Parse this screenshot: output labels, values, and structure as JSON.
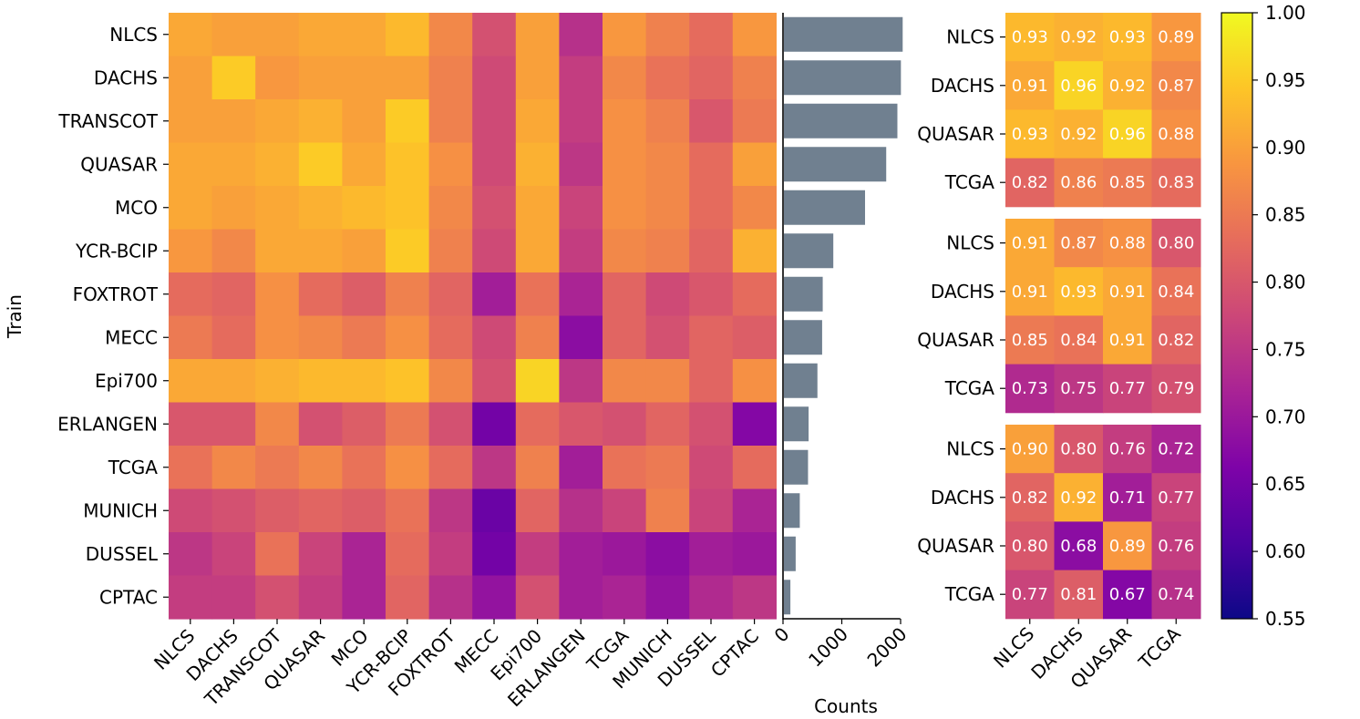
{
  "chart_data": [
    {
      "type": "heatmap",
      "name": "main-heatmap",
      "ylabel": "Train",
      "xlabel": "",
      "rows": [
        "NLCS",
        "DACHS",
        "TRANSCOT",
        "QUASAR",
        "MCO",
        "YCR-BCIP",
        "FOXTROT",
        "MECC",
        "Epi700",
        "ERLANGEN",
        "TCGA",
        "MUNICH",
        "DUSSEL",
        "CPTAC"
      ],
      "columns": [
        "NLCS",
        "DACHS",
        "TRANSCOT",
        "QUASAR",
        "MCO",
        "YCR-BCIP",
        "FOXTROT",
        "MECC",
        "Epi700",
        "ERLANGEN",
        "TCGA",
        "MUNICH",
        "DUSSEL",
        "CPTAC"
      ],
      "values": [
        [
          0.91,
          0.9,
          0.9,
          0.91,
          0.91,
          0.93,
          0.87,
          0.79,
          0.9,
          0.74,
          0.89,
          0.86,
          0.83,
          0.89
        ],
        [
          0.9,
          0.95,
          0.89,
          0.9,
          0.9,
          0.9,
          0.86,
          0.78,
          0.9,
          0.76,
          0.87,
          0.84,
          0.82,
          0.86
        ],
        [
          0.9,
          0.9,
          0.91,
          0.92,
          0.9,
          0.95,
          0.86,
          0.78,
          0.91,
          0.76,
          0.88,
          0.86,
          0.8,
          0.85
        ],
        [
          0.91,
          0.91,
          0.92,
          0.95,
          0.91,
          0.94,
          0.88,
          0.78,
          0.92,
          0.75,
          0.88,
          0.87,
          0.83,
          0.9
        ],
        [
          0.91,
          0.9,
          0.91,
          0.92,
          0.93,
          0.94,
          0.87,
          0.79,
          0.91,
          0.77,
          0.88,
          0.87,
          0.83,
          0.87
        ],
        [
          0.89,
          0.87,
          0.91,
          0.91,
          0.9,
          0.95,
          0.86,
          0.78,
          0.91,
          0.76,
          0.87,
          0.86,
          0.82,
          0.92
        ],
        [
          0.83,
          0.82,
          0.88,
          0.83,
          0.81,
          0.86,
          0.82,
          0.71,
          0.84,
          0.72,
          0.82,
          0.78,
          0.8,
          0.83
        ],
        [
          0.85,
          0.83,
          0.88,
          0.87,
          0.85,
          0.88,
          0.83,
          0.78,
          0.86,
          0.68,
          0.82,
          0.79,
          0.82,
          0.81
        ],
        [
          0.91,
          0.91,
          0.92,
          0.93,
          0.93,
          0.94,
          0.87,
          0.79,
          0.96,
          0.75,
          0.87,
          0.87,
          0.82,
          0.88
        ],
        [
          0.8,
          0.8,
          0.87,
          0.79,
          0.81,
          0.85,
          0.79,
          0.65,
          0.83,
          0.8,
          0.79,
          0.82,
          0.79,
          0.67
        ],
        [
          0.84,
          0.87,
          0.85,
          0.87,
          0.84,
          0.88,
          0.83,
          0.75,
          0.86,
          0.71,
          0.84,
          0.85,
          0.78,
          0.83
        ],
        [
          0.78,
          0.79,
          0.81,
          0.82,
          0.81,
          0.84,
          0.75,
          0.64,
          0.82,
          0.74,
          0.77,
          0.86,
          0.77,
          0.72
        ],
        [
          0.75,
          0.77,
          0.84,
          0.77,
          0.72,
          0.83,
          0.76,
          0.65,
          0.76,
          0.71,
          0.7,
          0.68,
          0.71,
          0.7
        ],
        [
          0.76,
          0.76,
          0.79,
          0.76,
          0.72,
          0.82,
          0.74,
          0.69,
          0.79,
          0.71,
          0.72,
          0.69,
          0.73,
          0.75
        ]
      ]
    },
    {
      "type": "bar",
      "orientation": "horizontal",
      "name": "counts-bar",
      "categories": [
        "NLCS",
        "DACHS",
        "TRANSCOT",
        "QUASAR",
        "MCO",
        "YCR-BCIP",
        "FOXTROT",
        "MECC",
        "Epi700",
        "ERLANGEN",
        "TCGA",
        "MUNICH",
        "DUSSEL",
        "CPTAC"
      ],
      "values": [
        2020,
        1990,
        1930,
        1740,
        1380,
        840,
        660,
        650,
        570,
        420,
        410,
        270,
        200,
        110
      ],
      "xlabel": "Counts",
      "xlim": [
        0,
        2150
      ],
      "xticks": [
        0,
        1000,
        2000
      ],
      "xtick_labels": [
        "0",
        "1000",
        "2000"
      ]
    },
    {
      "type": "heatmap",
      "name": "small-heatmap-1",
      "rows": [
        "NLCS",
        "DACHS",
        "QUASAR",
        "TCGA"
      ],
      "columns": [
        "NLCS",
        "DACHS",
        "QUASAR",
        "TCGA"
      ],
      "values": [
        [
          0.93,
          0.92,
          0.93,
          0.89
        ],
        [
          0.91,
          0.96,
          0.92,
          0.87
        ],
        [
          0.93,
          0.92,
          0.96,
          0.88
        ],
        [
          0.82,
          0.86,
          0.85,
          0.83
        ]
      ],
      "labels": [
        [
          "0.93",
          "0.92",
          "0.93",
          "0.89"
        ],
        [
          "0.91",
          "0.96",
          "0.92",
          "0.87"
        ],
        [
          "0.93",
          "0.92",
          "0.96",
          "0.88"
        ],
        [
          "0.82",
          "0.86",
          "0.85",
          "0.83"
        ]
      ]
    },
    {
      "type": "heatmap",
      "name": "small-heatmap-2",
      "rows": [
        "NLCS",
        "DACHS",
        "QUASAR",
        "TCGA"
      ],
      "columns": [
        "NLCS",
        "DACHS",
        "QUASAR",
        "TCGA"
      ],
      "values": [
        [
          0.91,
          0.87,
          0.88,
          0.8
        ],
        [
          0.91,
          0.93,
          0.91,
          0.84
        ],
        [
          0.85,
          0.84,
          0.91,
          0.82
        ],
        [
          0.73,
          0.75,
          0.77,
          0.79
        ]
      ],
      "labels": [
        [
          "0.91",
          "0.87",
          "0.88",
          "0.80"
        ],
        [
          "0.91",
          "0.93",
          "0.91",
          "0.84"
        ],
        [
          "0.85",
          "0.84",
          "0.91",
          "0.82"
        ],
        [
          "0.73",
          "0.75",
          "0.77",
          "0.79"
        ]
      ]
    },
    {
      "type": "heatmap",
      "name": "small-heatmap-3",
      "rows": [
        "NLCS",
        "DACHS",
        "QUASAR",
        "TCGA"
      ],
      "columns": [
        "NLCS",
        "DACHS",
        "QUASAR",
        "TCGA"
      ],
      "values": [
        [
          0.9,
          0.8,
          0.76,
          0.72
        ],
        [
          0.82,
          0.92,
          0.71,
          0.77
        ],
        [
          0.8,
          0.68,
          0.89,
          0.76
        ],
        [
          0.77,
          0.81,
          0.67,
          0.74
        ]
      ],
      "labels": [
        [
          "0.90",
          "0.80",
          "0.76",
          "0.72"
        ],
        [
          "0.82",
          "0.92",
          "0.71",
          "0.77"
        ],
        [
          "0.80",
          "0.68",
          "0.89",
          "0.76"
        ],
        [
          "0.77",
          "0.81",
          "0.67",
          "0.74"
        ]
      ]
    },
    {
      "type": "colorbar",
      "name": "colorbar",
      "colormap": "plasma",
      "range": [
        0.55,
        1.0
      ],
      "ticks": [
        0.55,
        0.6,
        0.65,
        0.7,
        0.75,
        0.8,
        0.85,
        0.9,
        0.95,
        1.0
      ],
      "tick_labels": [
        "0.55",
        "0.60",
        "0.65",
        "0.70",
        "0.75",
        "0.80",
        "0.85",
        "0.90",
        "0.95",
        "1.00"
      ]
    }
  ]
}
